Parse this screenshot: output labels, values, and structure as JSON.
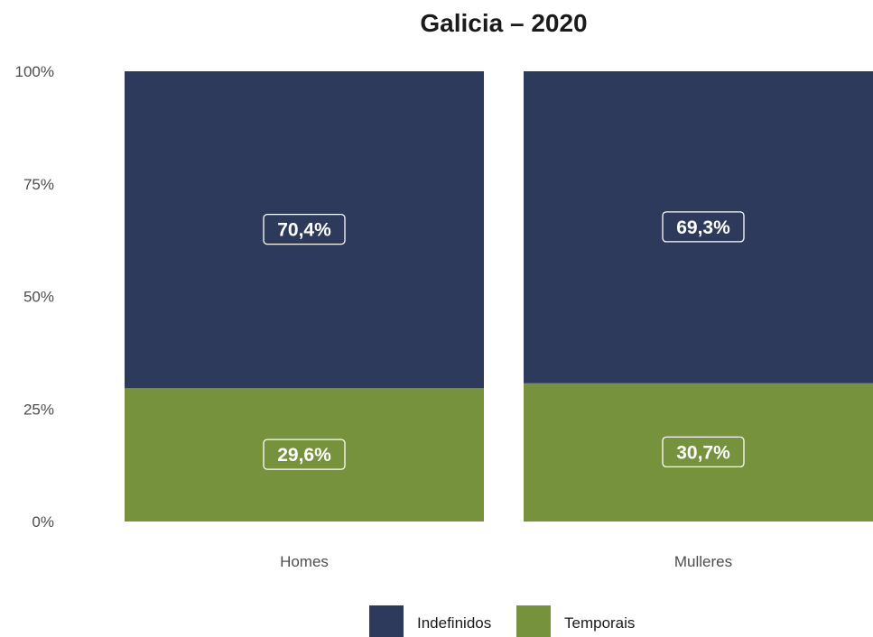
{
  "chart_data": {
    "type": "bar",
    "stacked": true,
    "title": "Galicia – 2020",
    "categories": [
      "Homes",
      "Mulleres"
    ],
    "series": [
      {
        "name": "Indefinidos",
        "color": "#2e3a5c",
        "values": [
          70.4,
          69.3
        ],
        "labels": [
          "70,4%",
          "69,3%"
        ]
      },
      {
        "name": "Temporais",
        "color": "#77923d",
        "values": [
          29.6,
          30.7
        ],
        "labels": [
          "29,6%",
          "30,7%"
        ]
      }
    ],
    "ylim": [
      0,
      100
    ],
    "yticks": [
      0,
      25,
      50,
      75,
      100
    ],
    "ytick_labels": [
      "0%",
      "25%",
      "50%",
      "75%",
      "100%"
    ],
    "legend_position": "bottom",
    "grid": false
  }
}
